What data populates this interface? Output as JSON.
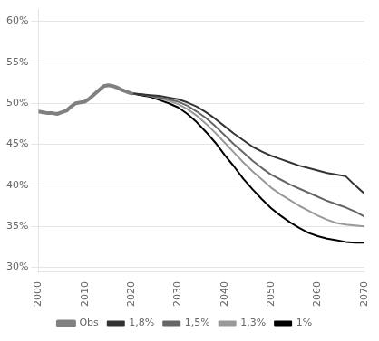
{
  "chart_data": {
    "type": "line",
    "xlim": [
      2000,
      2070
    ],
    "xticks": [
      2000,
      2010,
      2020,
      2030,
      2040,
      2050,
      2060,
      2070
    ],
    "ylim": [
      0.295,
      0.615
    ],
    "yticks": [
      {
        "value": 0.3,
        "label": "30%"
      },
      {
        "value": 0.35,
        "label": "35%"
      },
      {
        "value": 0.4,
        "label": "40%"
      },
      {
        "value": 0.45,
        "label": "45%"
      },
      {
        "value": 0.5,
        "label": "50%"
      },
      {
        "value": 0.55,
        "label": "55%"
      },
      {
        "value": 0.6,
        "label": "60%"
      }
    ],
    "grid": "y",
    "legend": "bottom",
    "series": [
      {
        "name": "Obs",
        "color": "#808080",
        "x": [
          2000,
          2001,
          2002,
          2003,
          2004,
          2005,
          2006,
          2007,
          2008,
          2009,
          2010,
          2011,
          2012,
          2013,
          2014,
          2015,
          2016,
          2017,
          2018,
          2019,
          2020
        ],
        "values": [
          0.49,
          0.489,
          0.488,
          0.488,
          0.487,
          0.489,
          0.491,
          0.496,
          0.5,
          0.501,
          0.502,
          0.506,
          0.511,
          0.516,
          0.521,
          0.522,
          0.521,
          0.519,
          0.516,
          0.514,
          0.512
        ]
      },
      {
        "name": "1,8%",
        "color": "#333333",
        "x": [
          2020,
          2022,
          2024,
          2026,
          2028,
          2030,
          2032,
          2034,
          2036,
          2038,
          2040,
          2042,
          2044,
          2046,
          2048,
          2050,
          2052,
          2054,
          2056,
          2058,
          2060,
          2062,
          2064,
          2066,
          2068,
          2070
        ],
        "values": [
          0.512,
          0.511,
          0.51,
          0.509,
          0.507,
          0.505,
          0.501,
          0.496,
          0.489,
          0.481,
          0.472,
          0.463,
          0.455,
          0.447,
          0.441,
          0.436,
          0.432,
          0.428,
          0.424,
          0.421,
          0.418,
          0.415,
          0.413,
          0.411,
          0.4,
          0.39
        ]
      },
      {
        "name": "1,5%",
        "color": "#666666",
        "x": [
          2020,
          2022,
          2024,
          2026,
          2028,
          2030,
          2032,
          2034,
          2036,
          2038,
          2040,
          2042,
          2044,
          2046,
          2048,
          2050,
          2052,
          2054,
          2056,
          2058,
          2060,
          2062,
          2064,
          2066,
          2068,
          2070
        ],
        "values": [
          0.512,
          0.511,
          0.509,
          0.507,
          0.505,
          0.502,
          0.497,
          0.49,
          0.482,
          0.472,
          0.461,
          0.45,
          0.44,
          0.43,
          0.421,
          0.413,
          0.407,
          0.401,
          0.396,
          0.391,
          0.386,
          0.381,
          0.377,
          0.373,
          0.368,
          0.362
        ]
      },
      {
        "name": "1,3%",
        "color": "#999999",
        "x": [
          2020,
          2022,
          2024,
          2026,
          2028,
          2030,
          2032,
          2034,
          2036,
          2038,
          2040,
          2042,
          2044,
          2046,
          2048,
          2050,
          2052,
          2054,
          2056,
          2058,
          2060,
          2062,
          2064,
          2066,
          2068,
          2070
        ],
        "values": [
          0.512,
          0.511,
          0.509,
          0.506,
          0.503,
          0.499,
          0.493,
          0.485,
          0.475,
          0.464,
          0.452,
          0.44,
          0.428,
          0.417,
          0.407,
          0.397,
          0.389,
          0.382,
          0.375,
          0.369,
          0.363,
          0.358,
          0.354,
          0.352,
          0.351,
          0.35
        ]
      },
      {
        "name": "1%",
        "color": "#000000",
        "x": [
          2020,
          2022,
          2024,
          2026,
          2028,
          2030,
          2032,
          2034,
          2036,
          2038,
          2040,
          2042,
          2044,
          2046,
          2048,
          2050,
          2052,
          2054,
          2056,
          2058,
          2060,
          2062,
          2064,
          2066,
          2068,
          2070
        ],
        "values": [
          0.512,
          0.51,
          0.508,
          0.504,
          0.5,
          0.495,
          0.487,
          0.477,
          0.465,
          0.452,
          0.437,
          0.423,
          0.408,
          0.395,
          0.383,
          0.372,
          0.363,
          0.355,
          0.348,
          0.342,
          0.338,
          0.335,
          0.333,
          0.331,
          0.33,
          0.33
        ]
      }
    ]
  }
}
